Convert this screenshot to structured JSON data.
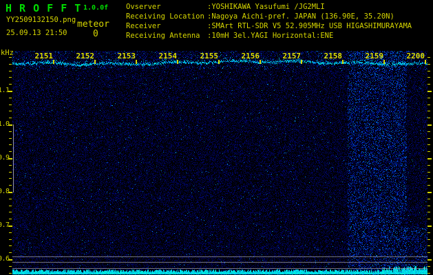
{
  "header": {
    "title": "H R O F F T",
    "version": "1.0.0f",
    "file_name": "YY2509132150.png",
    "datetime": "25.09.13 21:50",
    "meteor_label": "meteor",
    "meteor_count": "0",
    "info": [
      {
        "label": "Ovserver",
        "value": ":YOSHIKAWA Yasufumi /JG2MLI"
      },
      {
        "label": "Receiving Location",
        "value": ":Nagoya Aichi-pref. JAPAN (136.90E, 35.20N)"
      },
      {
        "label": "Receiver",
        "value": ":SMArt RTL-SDR V5 52.905MHz USB HIGASHIMURAYAMA"
      },
      {
        "label": "Receiving Antenna",
        "value": ":10mH 3el.YAGI Horizontal:ENE"
      }
    ]
  },
  "spectrogram": {
    "freq_axis": {
      "unit": "kHz",
      "tick_labels": [
        "1.1",
        "1.0",
        "0.9",
        "0.8",
        "0.7",
        "0.6"
      ]
    },
    "time_axis": {
      "tick_labels": [
        "2151",
        "2152",
        "2153",
        "2154",
        "2155",
        "2156",
        "2157",
        "2158",
        "2159",
        "2200"
      ]
    },
    "features": {
      "carrier_line_khz": 1.17,
      "elevated_noise_band_minutes": [
        "2159"
      ],
      "calibration_line_khz_range": [
        0.8,
        1.0
      ],
      "level_meter": "cyan audio-level strip along bottom edge"
    },
    "colors": {
      "background": "#000000",
      "title_green": "#00dd00",
      "text_yellow": "#d6d600",
      "noise_blue": "#0000aa",
      "signal_cyan": "#00e0ff",
      "grid_gray": "#a0a0a5"
    }
  }
}
